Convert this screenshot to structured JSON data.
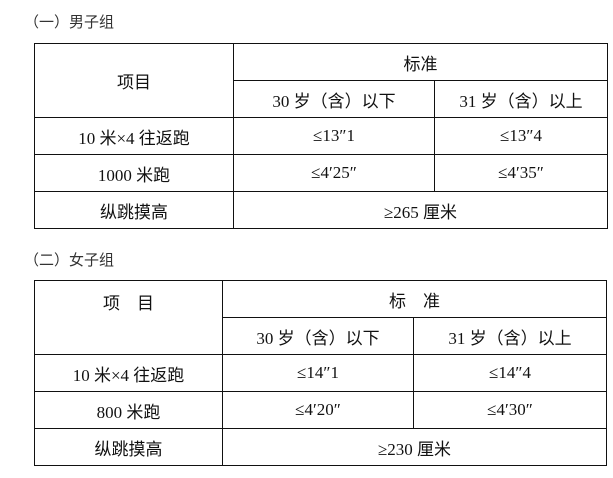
{
  "sections": [
    {
      "title": "（一）男子组",
      "header": {
        "item": "项目",
        "standard": "标准",
        "col_a": "30 岁（含）以下",
        "col_b": "31 岁（含）以上"
      },
      "rows": [
        {
          "item": "10 米×4 往返跑",
          "a": "≤13″1",
          "b": "≤13″4"
        },
        {
          "item": "1000 米跑",
          "a": "≤4′25″",
          "b": "≤4′35″"
        },
        {
          "item": "纵跳摸高",
          "merged": "≥265 厘米"
        }
      ]
    },
    {
      "title": "（二）女子组",
      "header": {
        "item": "项　目",
        "standard": "标　准",
        "col_a": "30 岁（含）以下",
        "col_b": "31 岁（含）以上"
      },
      "rows": [
        {
          "item": "10 米×4 往返跑",
          "a": "≤14″1",
          "b": "≤14″4"
        },
        {
          "item": "800 米跑",
          "a": "≤4′20″",
          "b": "≤4′30″"
        },
        {
          "item": "纵跳摸高",
          "merged": "≥230 厘米"
        }
      ]
    }
  ]
}
